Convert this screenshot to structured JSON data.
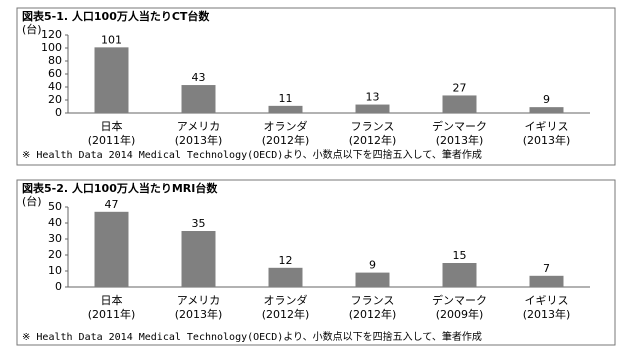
{
  "chart_data": [
    {
      "type": "bar",
      "title": "図表5-1. 人口100万人当たりCT台数",
      "ylabel": "(台)",
      "categories": [
        [
          "日本",
          "(2011年)"
        ],
        [
          "アメリカ",
          "(2013年)"
        ],
        [
          "オランダ",
          "(2012年)"
        ],
        [
          "フランス",
          "(2012年)"
        ],
        [
          "デンマーク",
          "(2013年)"
        ],
        [
          "イギリス",
          "(2013年)"
        ]
      ],
      "values": [
        101,
        43,
        11,
        13,
        27,
        9
      ],
      "color": "#808080",
      "ylim": [
        0,
        120
      ],
      "yticks": [
        0,
        20,
        40,
        60,
        80,
        100,
        120
      ],
      "grid": false,
      "note": "※ Health Data 2014 Medical Technology(OECD)より、小数点以下を四捨五入して、筆者作成"
    },
    {
      "type": "bar",
      "title": "図表5-2. 人口100万人当たりMRI台数",
      "ylabel": "(台)",
      "categories": [
        [
          "日本",
          "(2011年)"
        ],
        [
          "アメリカ",
          "(2013年)"
        ],
        [
          "オランダ",
          "(2012年)"
        ],
        [
          "フランス",
          "(2012年)"
        ],
        [
          "デンマーク",
          "(2009年)"
        ],
        [
          "イギリス",
          "(2013年)"
        ]
      ],
      "values": [
        47,
        35,
        12,
        9,
        15,
        7
      ],
      "color": "#808080",
      "ylim": [
        0,
        50
      ],
      "yticks": [
        0,
        10,
        20,
        30,
        40,
        50
      ],
      "grid": false,
      "note": "※ Health Data 2014 Medical Technology(OECD)より、小数点以下を四捨五入して、筆者作成"
    }
  ]
}
